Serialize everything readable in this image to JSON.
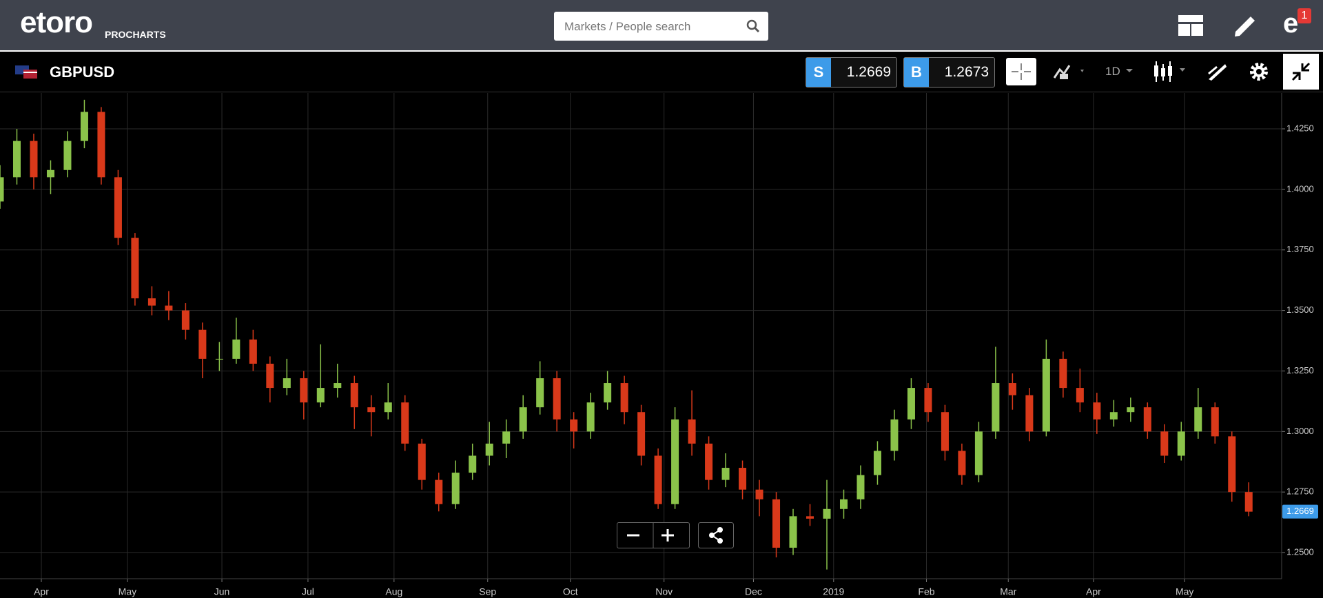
{
  "header": {
    "logo": "etoro",
    "product": "PROCHARTS",
    "search_placeholder": "Markets / People search",
    "notification_count": "1"
  },
  "toolbar": {
    "instrument": "GBPUSD",
    "sell_label": "S",
    "sell_price": "1.2669",
    "buy_label": "B",
    "buy_price": "1.2673",
    "timeframe": "1D"
  },
  "chart_data": {
    "type": "candlestick",
    "ohlc": [
      [
        1.395,
        1.41,
        1.392,
        1.405
      ],
      [
        1.405,
        1.425,
        1.402,
        1.42
      ],
      [
        1.42,
        1.423,
        1.4,
        1.405
      ],
      [
        1.405,
        1.412,
        1.398,
        1.408
      ],
      [
        1.408,
        1.424,
        1.405,
        1.42
      ],
      [
        1.42,
        1.437,
        1.417,
        1.432
      ],
      [
        1.432,
        1.434,
        1.402,
        1.405
      ],
      [
        1.405,
        1.408,
        1.377,
        1.38
      ],
      [
        1.38,
        1.382,
        1.352,
        1.355
      ],
      [
        1.355,
        1.36,
        1.348,
        1.352
      ],
      [
        1.352,
        1.358,
        1.346,
        1.35
      ],
      [
        1.35,
        1.353,
        1.338,
        1.342
      ],
      [
        1.342,
        1.345,
        1.322,
        1.33
      ],
      [
        1.33,
        1.337,
        1.325,
        1.33
      ],
      [
        1.33,
        1.347,
        1.328,
        1.338
      ],
      [
        1.338,
        1.342,
        1.325,
        1.328
      ],
      [
        1.328,
        1.331,
        1.312,
        1.318
      ],
      [
        1.318,
        1.33,
        1.315,
        1.322
      ],
      [
        1.322,
        1.325,
        1.305,
        1.312
      ],
      [
        1.312,
        1.336,
        1.31,
        1.318
      ],
      [
        1.318,
        1.328,
        1.314,
        1.32
      ],
      [
        1.32,
        1.323,
        1.301,
        1.31
      ],
      [
        1.31,
        1.315,
        1.298,
        1.308
      ],
      [
        1.308,
        1.32,
        1.305,
        1.312
      ],
      [
        1.312,
        1.315,
        1.292,
        1.295
      ],
      [
        1.295,
        1.297,
        1.276,
        1.28
      ],
      [
        1.28,
        1.283,
        1.267,
        1.27
      ],
      [
        1.27,
        1.288,
        1.268,
        1.283
      ],
      [
        1.283,
        1.295,
        1.28,
        1.29
      ],
      [
        1.29,
        1.304,
        1.286,
        1.295
      ],
      [
        1.295,
        1.305,
        1.289,
        1.3
      ],
      [
        1.3,
        1.315,
        1.297,
        1.31
      ],
      [
        1.31,
        1.329,
        1.307,
        1.322
      ],
      [
        1.322,
        1.325,
        1.3,
        1.305
      ],
      [
        1.305,
        1.308,
        1.293,
        1.3
      ],
      [
        1.3,
        1.316,
        1.297,
        1.312
      ],
      [
        1.312,
        1.325,
        1.309,
        1.32
      ],
      [
        1.32,
        1.323,
        1.303,
        1.308
      ],
      [
        1.308,
        1.311,
        1.286,
        1.29
      ],
      [
        1.29,
        1.293,
        1.268,
        1.27
      ],
      [
        1.27,
        1.31,
        1.268,
        1.305
      ],
      [
        1.305,
        1.317,
        1.29,
        1.295
      ],
      [
        1.295,
        1.298,
        1.276,
        1.28
      ],
      [
        1.28,
        1.291,
        1.277,
        1.285
      ],
      [
        1.285,
        1.288,
        1.272,
        1.276
      ],
      [
        1.276,
        1.28,
        1.265,
        1.272
      ],
      [
        1.272,
        1.275,
        1.248,
        1.252
      ],
      [
        1.252,
        1.268,
        1.249,
        1.265
      ],
      [
        1.265,
        1.27,
        1.261,
        1.264
      ],
      [
        1.264,
        1.28,
        1.243,
        1.268
      ],
      [
        1.268,
        1.276,
        1.264,
        1.272
      ],
      [
        1.272,
        1.286,
        1.268,
        1.282
      ],
      [
        1.282,
        1.296,
        1.278,
        1.292
      ],
      [
        1.292,
        1.309,
        1.288,
        1.305
      ],
      [
        1.305,
        1.322,
        1.301,
        1.318
      ],
      [
        1.318,
        1.32,
        1.304,
        1.308
      ],
      [
        1.308,
        1.311,
        1.288,
        1.292
      ],
      [
        1.292,
        1.295,
        1.278,
        1.282
      ],
      [
        1.282,
        1.304,
        1.279,
        1.3
      ],
      [
        1.3,
        1.335,
        1.297,
        1.32
      ],
      [
        1.32,
        1.324,
        1.309,
        1.315
      ],
      [
        1.315,
        1.318,
        1.296,
        1.3
      ],
      [
        1.3,
        1.338,
        1.298,
        1.33
      ],
      [
        1.33,
        1.333,
        1.314,
        1.318
      ],
      [
        1.318,
        1.326,
        1.308,
        1.312
      ],
      [
        1.312,
        1.316,
        1.299,
        1.305
      ],
      [
        1.305,
        1.313,
        1.302,
        1.308
      ],
      [
        1.308,
        1.314,
        1.304,
        1.31
      ],
      [
        1.31,
        1.312,
        1.297,
        1.3
      ],
      [
        1.3,
        1.303,
        1.287,
        1.29
      ],
      [
        1.29,
        1.304,
        1.288,
        1.3
      ],
      [
        1.3,
        1.318,
        1.297,
        1.31
      ],
      [
        1.31,
        1.312,
        1.295,
        1.298
      ],
      [
        1.298,
        1.3,
        1.271,
        1.275
      ],
      [
        1.275,
        1.279,
        1.265,
        1.2669
      ]
    ],
    "up_color": "#8bc34a",
    "down_color": "#d9391a",
    "ylim": [
      1.2392,
      1.4398
    ],
    "yticks": [
      {
        "value": 1.25,
        "label": "1.2500"
      },
      {
        "value": 1.275,
        "label": "1.2750"
      },
      {
        "value": 1.3,
        "label": "1.3000"
      },
      {
        "value": 1.325,
        "label": "1.3250"
      },
      {
        "value": 1.35,
        "label": "1.3500"
      },
      {
        "value": 1.375,
        "label": "1.3750"
      },
      {
        "value": 1.4,
        "label": "1.4000"
      },
      {
        "value": 1.425,
        "label": "1.4250"
      }
    ],
    "xlim": [
      0,
      75.95
    ],
    "xticks": [
      {
        "value": 2.45,
        "label": "Apr"
      },
      {
        "value": 7.55,
        "label": "May"
      },
      {
        "value": 13.15,
        "label": "Jun"
      },
      {
        "value": 18.25,
        "label": "Jul"
      },
      {
        "value": 23.35,
        "label": "Aug"
      },
      {
        "value": 28.9,
        "label": "Sep"
      },
      {
        "value": 33.8,
        "label": "Oct"
      },
      {
        "value": 39.35,
        "label": "Nov"
      },
      {
        "value": 44.65,
        "label": "Dec"
      },
      {
        "value": 49.4,
        "label": "2019"
      },
      {
        "value": 54.9,
        "label": "Feb"
      },
      {
        "value": 59.75,
        "label": "Mar"
      },
      {
        "value": 64.8,
        "label": "Apr"
      },
      {
        "value": 70.2,
        "label": "May"
      }
    ],
    "grid": true,
    "last_price": {
      "value": 1.2669,
      "label": "1.2669"
    }
  }
}
